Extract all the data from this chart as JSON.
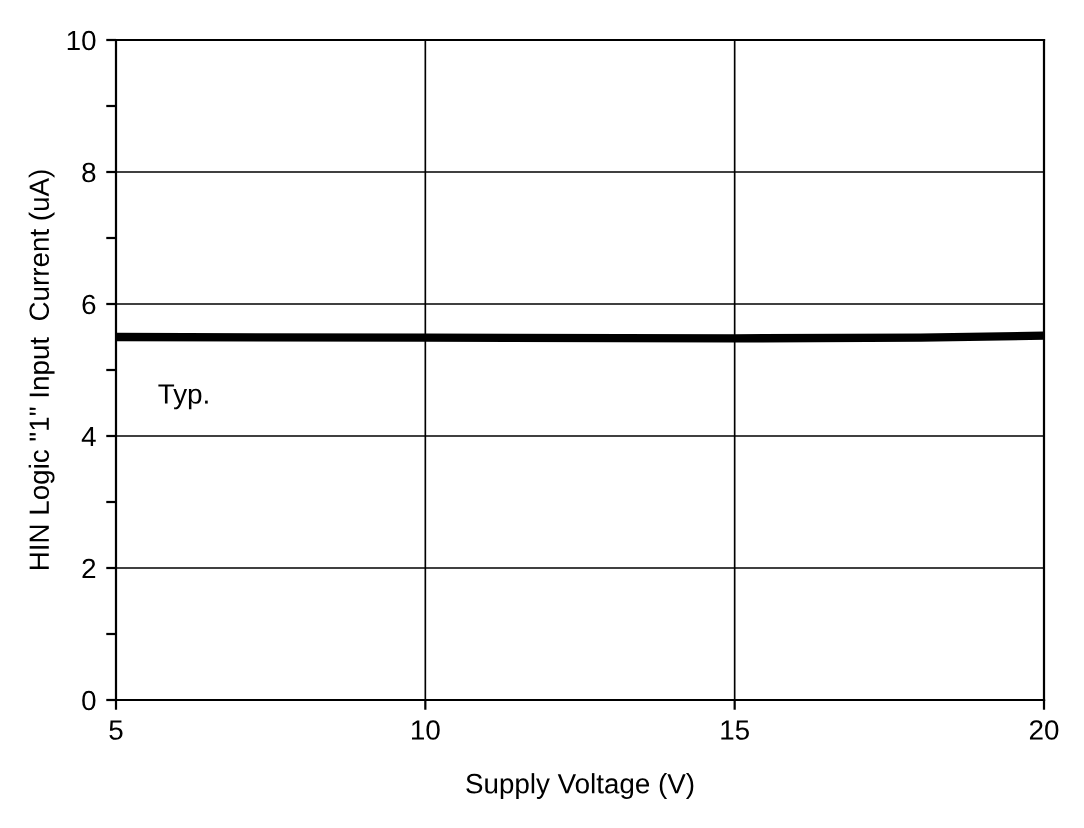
{
  "chart_data": {
    "type": "line",
    "xlabel": "Supply Voltage (V)",
    "ylabel": "HIN Logic \"1\" Input  Current (uA)",
    "x": [
      5,
      10,
      15,
      18,
      20
    ],
    "series": [
      {
        "color": "#000000",
        "values": [
          5.5,
          5.49,
          5.48,
          5.49,
          5.52
        ]
      }
    ],
    "xlim": [
      5,
      20
    ],
    "xticks": [
      5,
      10,
      15,
      20
    ],
    "ylim": [
      0,
      10
    ],
    "yticks": [
      0,
      {
        "value": 1,
        "label": null
      },
      2,
      {
        "value": 3,
        "label": null
      },
      4,
      {
        "value": 5,
        "label": null
      },
      6,
      {
        "value": 7,
        "label": null
      },
      8,
      {
        "value": 9,
        "label": null
      },
      10
    ],
    "grid": true,
    "marker": "none",
    "line_style": "solid",
    "annotations": [
      "Typ."
    ]
  }
}
